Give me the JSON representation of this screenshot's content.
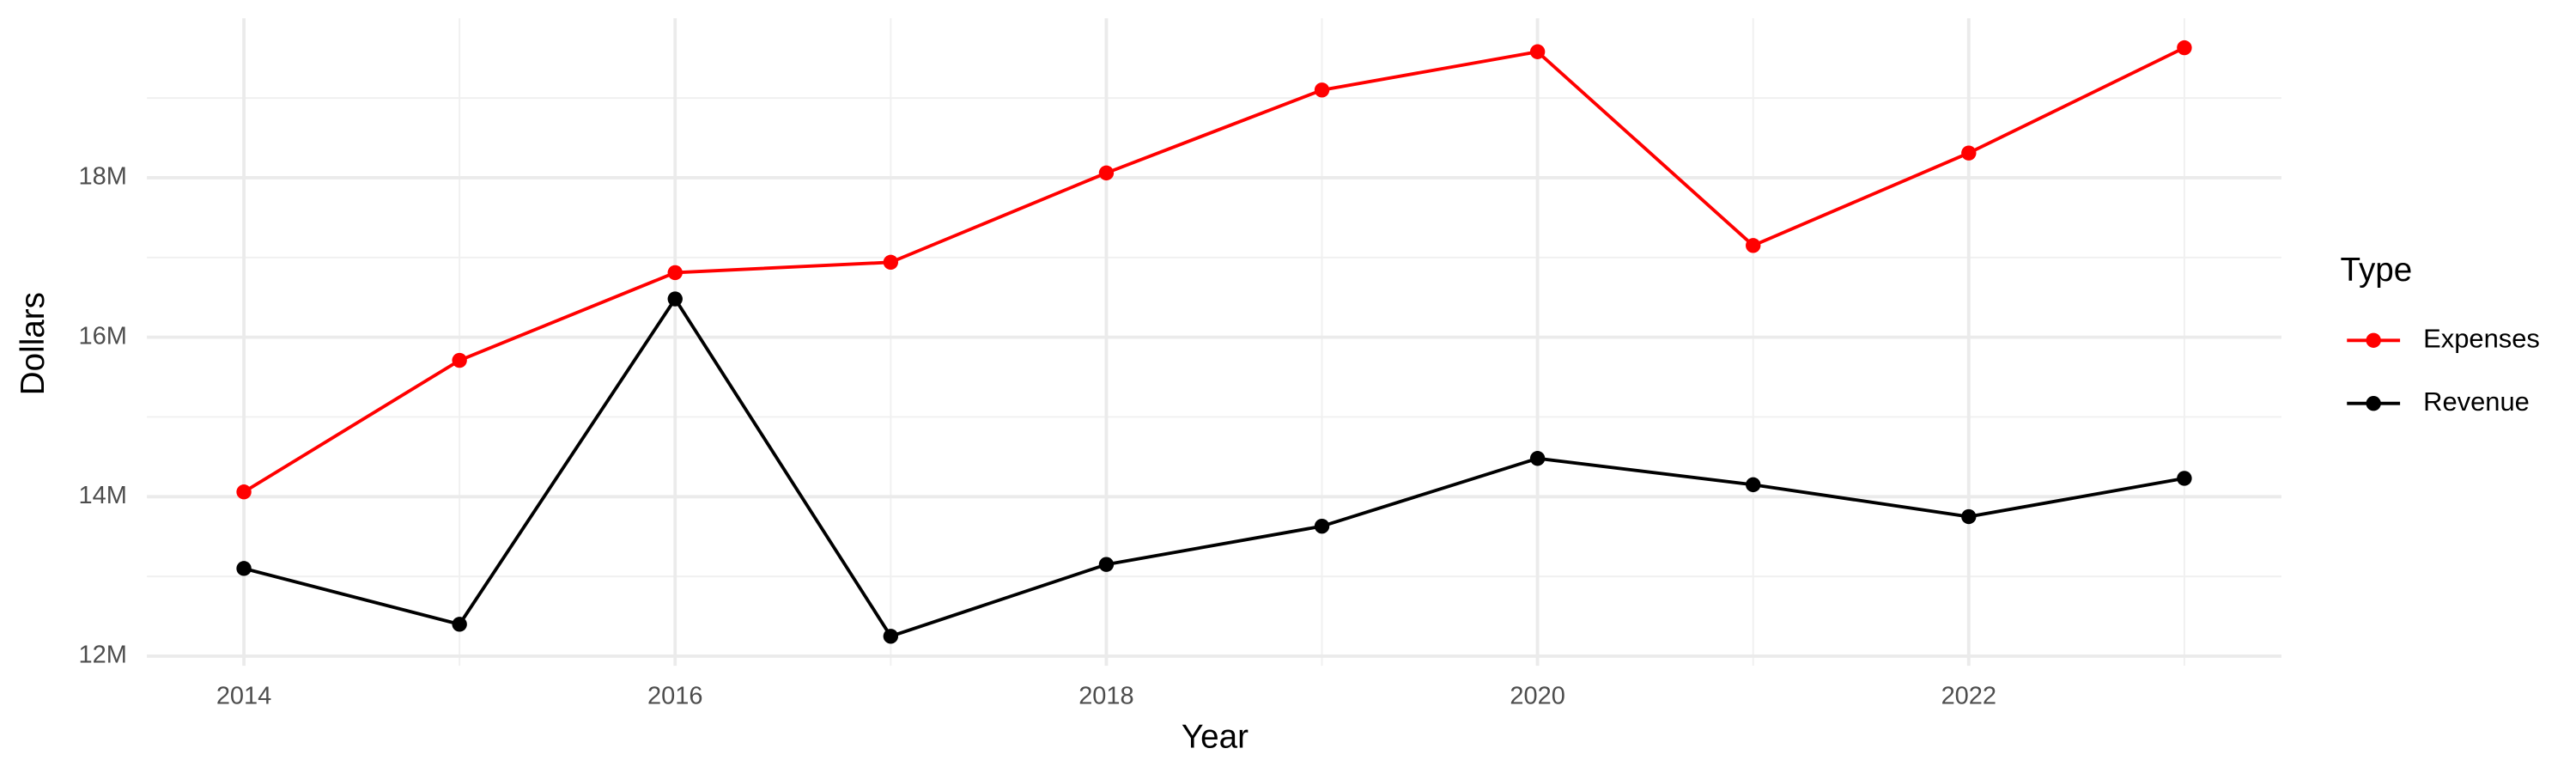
{
  "chart_data": {
    "type": "line",
    "x_label": "Year",
    "y_label": "Dollars",
    "x": [
      2014,
      2015,
      2016,
      2017,
      2018,
      2019,
      2020,
      2021,
      2022,
      2023
    ],
    "series": [
      {
        "name": "Expenses",
        "color": "#ff0000",
        "values": [
          14060000,
          15710000,
          16810000,
          16940000,
          18060000,
          19100000,
          19580000,
          17150000,
          18310000,
          19630000
        ]
      },
      {
        "name": "Revenue",
        "color": "#000000",
        "values": [
          13100000,
          12400000,
          16480000,
          12250000,
          13150000,
          13630000,
          14480000,
          14150000,
          13750000,
          14230000
        ]
      }
    ],
    "xlim": [
      2013.55,
      2023.45
    ],
    "xticks": [
      2014,
      2016,
      2018,
      2020,
      2022
    ],
    "ylim": [
      11880000,
      20000000
    ],
    "yticks": [
      {
        "value": 12000000,
        "label": "12M"
      },
      {
        "value": 14000000,
        "label": "14M"
      },
      {
        "value": 16000000,
        "label": "16M"
      },
      {
        "value": 18000000,
        "label": "18M"
      }
    ],
    "grid": true,
    "legend_title": "Type",
    "legend_position": "right"
  }
}
